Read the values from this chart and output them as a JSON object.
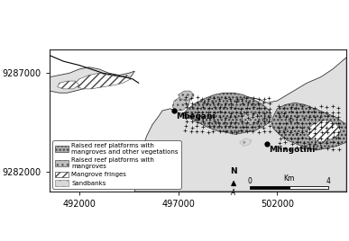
{
  "xlim": [
    490500,
    505500
  ],
  "ylim": [
    9281000,
    9288200
  ],
  "xticks": [
    492000,
    497000,
    502000
  ],
  "yticks": [
    9282000,
    9287000
  ],
  "tick_fontsize": 7,
  "mbegani": [
    496800,
    9285100
  ],
  "mlingotini": [
    501500,
    9283400
  ],
  "background_color": "#ffffff",
  "water_color": "#ffffff",
  "land_color": "#e0e0e0",
  "reef_veg_color": "#aaaaaa",
  "reef_mang_color": "#cccccc",
  "fringe_color": "#ffffff",
  "sandbank_color": "#d8d8d8"
}
